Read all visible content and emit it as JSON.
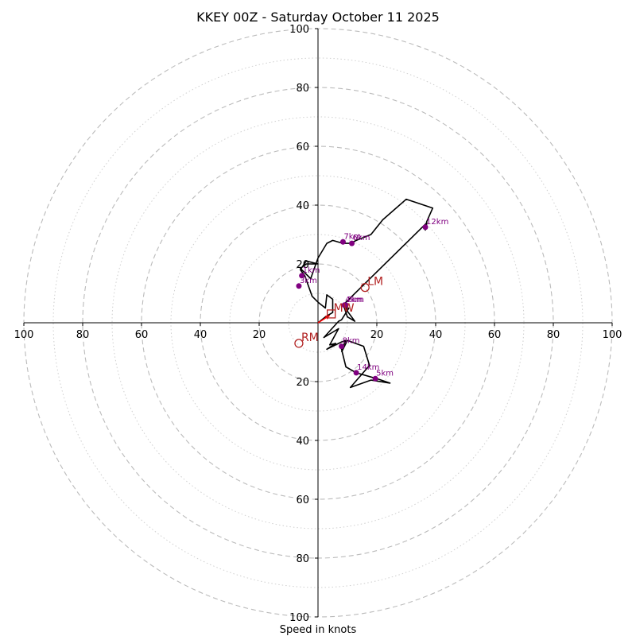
{
  "chart_data": {
    "type": "hodograph",
    "title": "KKEY 00Z - Saturday October 11 2025",
    "xlabel": "Speed in knots",
    "axis_range": [
      -100,
      100
    ],
    "ring_major": [
      20,
      40,
      60,
      80,
      100
    ],
    "ring_minor": [
      10,
      30,
      50,
      70,
      90
    ],
    "x_tick_labels": [
      "100",
      "80",
      "60",
      "40",
      "20",
      "20",
      "40",
      "60",
      "80",
      "100"
    ],
    "y_tick_labels_up": [
      "100",
      "80",
      "60",
      "40",
      "20"
    ],
    "y_tick_labels_down": [
      "20",
      "40",
      "60",
      "80",
      "100"
    ],
    "colors": {
      "trace": "#000000",
      "height_points": "#800080",
      "motion": "#b22222",
      "mean_wind": "#ff0000",
      "grid": "#bbbbbb"
    },
    "trace_uv": [
      [
        0,
        0
      ],
      [
        2.5,
        2
      ],
      [
        5,
        3.5
      ],
      [
        5,
        8
      ],
      [
        3,
        9.5
      ],
      [
        2.5,
        5
      ],
      [
        0,
        7
      ],
      [
        -2,
        9
      ],
      [
        -4.5,
        16
      ],
      [
        -6,
        18
      ],
      [
        -4,
        21
      ],
      [
        0,
        20
      ],
      [
        -4,
        20
      ],
      [
        -6,
        18.5
      ],
      [
        -2.5,
        15
      ],
      [
        0,
        22
      ],
      [
        3,
        27
      ],
      [
        5,
        28
      ],
      [
        8.5,
        27
      ],
      [
        11,
        27
      ],
      [
        13,
        28
      ],
      [
        18,
        30
      ],
      [
        22,
        35
      ],
      [
        30,
        42
      ],
      [
        39,
        39
      ],
      [
        37,
        34.5
      ],
      [
        36.5,
        31.5
      ],
      [
        37,
        34
      ],
      [
        8.5,
        6
      ],
      [
        12.5,
        0.5
      ],
      [
        10,
        2
      ],
      [
        9,
        5
      ],
      [
        10.5,
        5
      ],
      [
        8,
        1
      ],
      [
        7,
        0.5
      ],
      [
        2,
        -5
      ],
      [
        7,
        -2
      ],
      [
        4,
        -7.5
      ],
      [
        6,
        -7
      ],
      [
        3,
        -9
      ],
      [
        8,
        -6.5
      ],
      [
        9.5,
        -6
      ],
      [
        8,
        -9
      ],
      [
        9.5,
        -15
      ],
      [
        13,
        -17
      ],
      [
        20,
        -19
      ],
      [
        24.5,
        -20.5
      ],
      [
        18,
        -19.5
      ],
      [
        11,
        -22
      ],
      [
        17.5,
        -14.5
      ],
      [
        15.5,
        -8
      ],
      [
        10,
        -6
      ],
      [
        8,
        -10
      ]
    ],
    "height_markers": [
      {
        "label": "1km",
        "u": -5.5,
        "v": 16
      },
      {
        "label": "3km",
        "u": -6.5,
        "v": 12.5
      },
      {
        "label": "2km",
        "u": 9.5,
        "v": 6
      },
      {
        "label": "4km",
        "u": 9,
        "v": 6
      },
      {
        "label": "8km",
        "u": 8,
        "v": -8
      },
      {
        "label": "14km",
        "u": 13,
        "v": -17
      },
      {
        "label": "5km",
        "u": 19.5,
        "v": -19
      },
      {
        "label": "7km",
        "u": 8.5,
        "v": 27.5
      },
      {
        "label": "6km",
        "u": 11.5,
        "v": 27
      },
      {
        "label": "12km",
        "u": 36.5,
        "v": 32.5
      }
    ],
    "storm_motion": [
      {
        "label": "LM",
        "u": 16,
        "v": 12
      },
      {
        "label": "RM",
        "u": -6.5,
        "v": -7
      },
      {
        "label": "MW",
        "u": 4.5,
        "v": 3
      }
    ],
    "mean_wind_vector": {
      "u": 4,
      "v": 2.5
    }
  }
}
